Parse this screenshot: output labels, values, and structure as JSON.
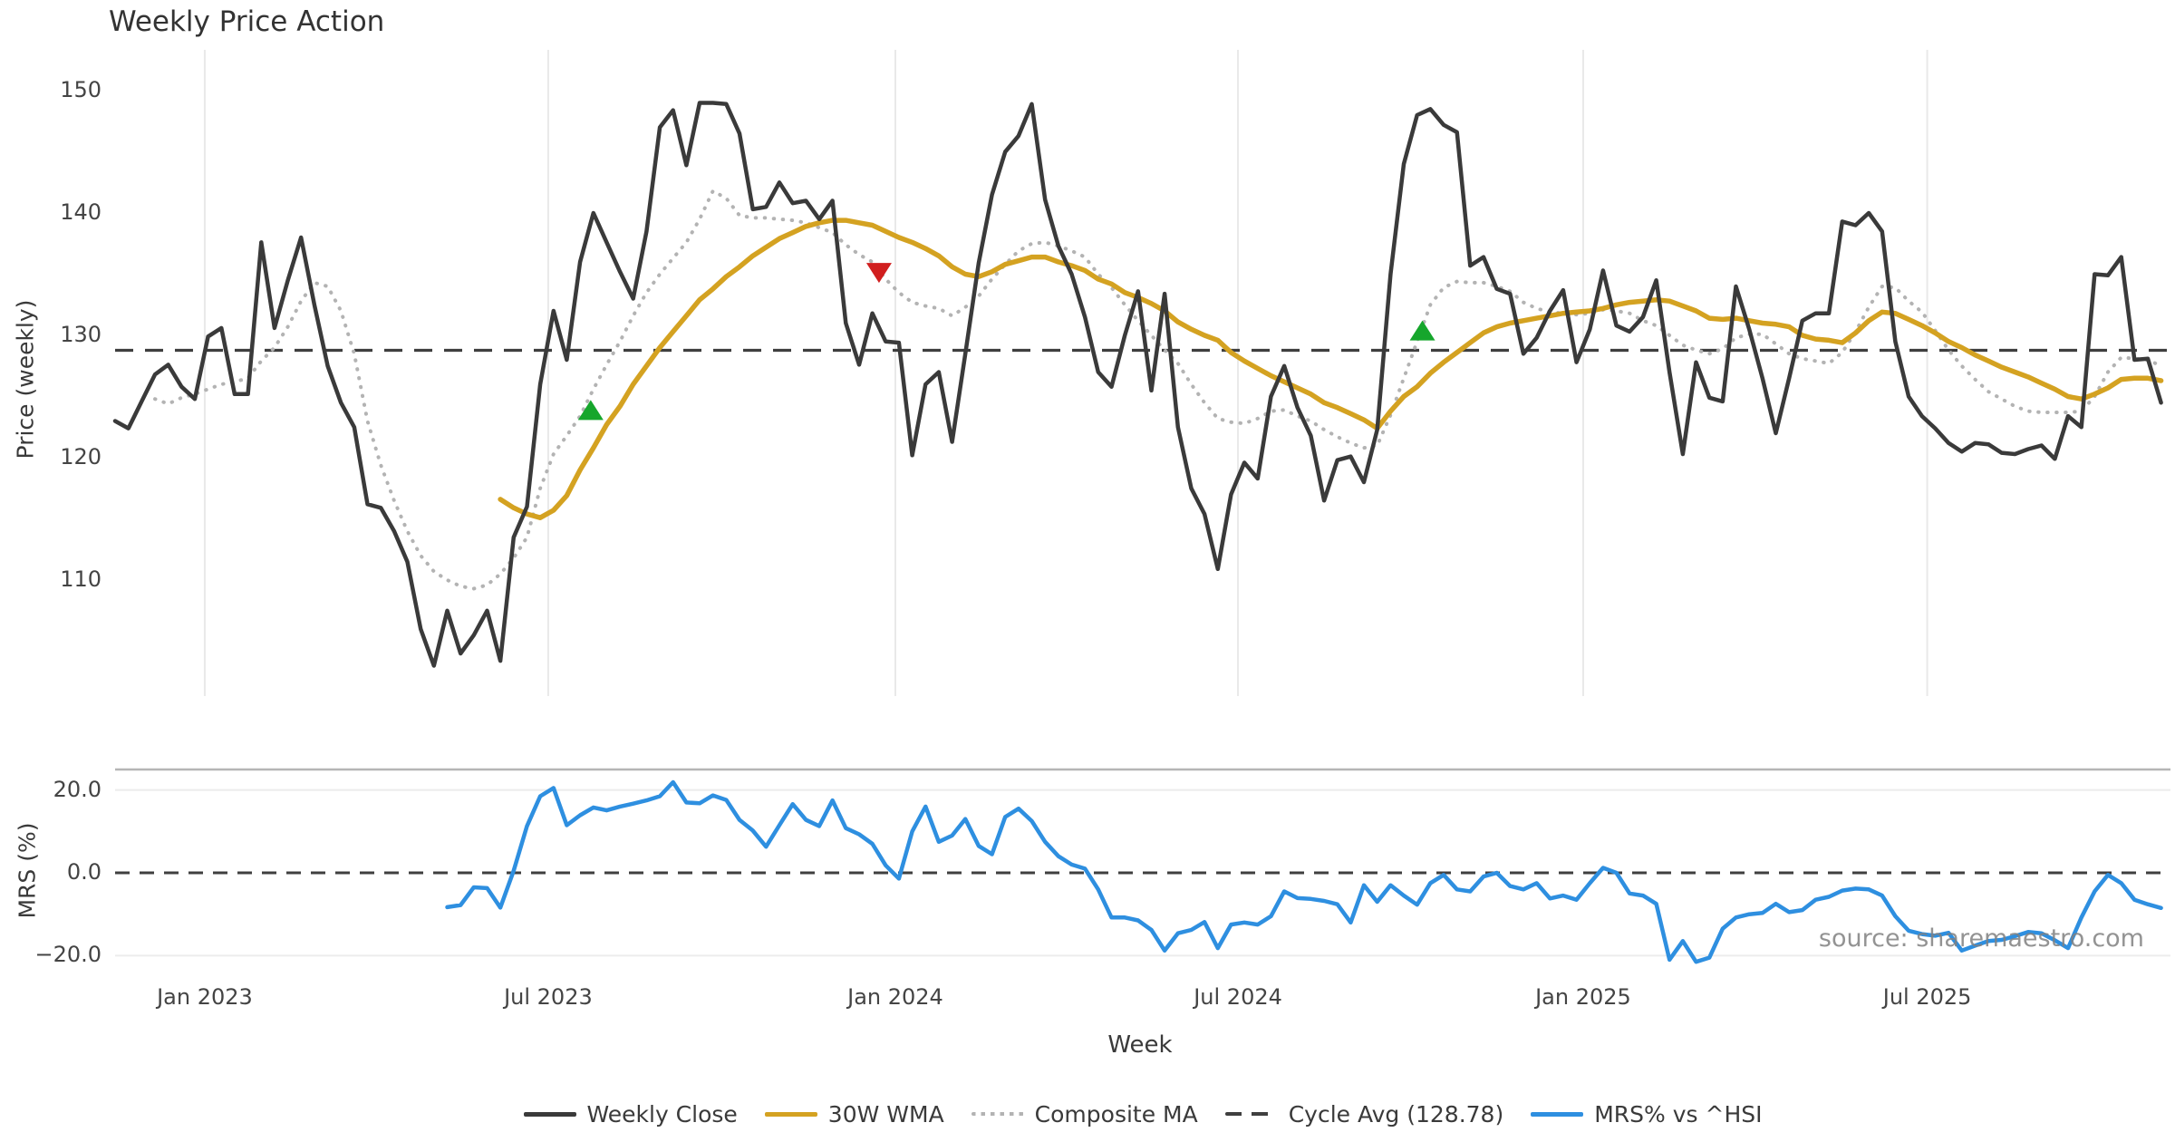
{
  "title": "Weekly Price Action",
  "source_watermark": "source: sharemaestro.com",
  "colors": {
    "weekly_close": "#3a3a3a",
    "wma30": "#d4a221",
    "composite_ma": "#b3b3b3",
    "cycle_avg": "#3f3f3f",
    "mrs": "#2e8fe0",
    "buy_marker": "#16a62c",
    "sell_marker": "#d11f1f",
    "gridline": "#e9e9e9",
    "panel_spine": "#b5b5b5",
    "mrs_gridline": "#ececec"
  },
  "axes": {
    "price": {
      "label": "Price (weekly)",
      "ticks": [
        {
          "label": "150",
          "value": 150
        },
        {
          "label": "140",
          "value": 140
        },
        {
          "label": "130",
          "value": 130
        },
        {
          "label": "120",
          "value": 120
        },
        {
          "label": "110",
          "value": 110
        }
      ]
    },
    "mrs": {
      "label": "MRS (%)",
      "ticks": [
        {
          "label": "20.0",
          "value": 20
        },
        {
          "label": "0.0",
          "value": 0
        },
        {
          "label": "−20.0",
          "value": -20
        }
      ]
    },
    "x": {
      "label": "Week",
      "ticks": [
        {
          "label": "Jan 2023",
          "week": 6.75
        },
        {
          "label": "Jul 2023",
          "week": 32.6
        },
        {
          "label": "Jan 2024",
          "week": 58.73
        },
        {
          "label": "Jul 2024",
          "week": 84.52
        },
        {
          "label": "Jan 2025",
          "week": 110.5
        },
        {
          "label": "Jul 2025",
          "week": 136.4
        }
      ]
    }
  },
  "legend": {
    "items": [
      {
        "label": "Weekly Close",
        "style": "solid",
        "color": "#3a3a3a"
      },
      {
        "label": "30W WMA",
        "style": "solid",
        "color": "#d4a221"
      },
      {
        "label": "Composite MA",
        "style": "dotted",
        "color": "#b3b3b3"
      },
      {
        "label": "Cycle Avg (128.78)",
        "style": "dashed",
        "color": "#3f3f3f"
      },
      {
        "label": "MRS% vs ^HSI",
        "style": "solid",
        "color": "#2e8fe0"
      }
    ]
  },
  "chart_data": {
    "type": "line",
    "title": "Weekly Price Action",
    "xlabel": "Week",
    "x_unit": "weekly, Nov 2022 – Nov 2025",
    "panels": [
      {
        "name": "price",
        "ylabel": "Price (weekly)",
        "ylim": [
          100.5,
          153.3
        ],
        "cycle_avg": 128.78,
        "series": [
          {
            "name": "Weekly Close",
            "start_week": 0,
            "values": [
              123.0,
              122.4,
              124.6,
              126.8,
              127.6,
              125.8,
              124.8,
              129.9,
              130.6,
              125.2,
              125.2,
              137.6,
              130.6,
              134.5,
              138.0,
              132.5,
              127.5,
              124.5,
              122.5,
              116.2,
              115.9,
              114.0,
              111.5,
              106.0,
              103.0,
              107.5,
              104.0,
              105.5,
              107.5,
              103.4,
              113.5,
              116.0,
              126.0,
              132.0,
              128.0,
              136.0,
              140.0,
              137.6,
              135.2,
              133.0,
              138.5,
              147.0,
              148.4,
              143.9,
              149.0,
              149.0,
              148.9,
              146.5,
              140.3,
              140.5,
              142.5,
              140.8,
              141.0,
              139.5,
              141.0,
              131.0,
              127.6,
              131.8,
              129.5,
              129.4,
              120.2,
              126.0,
              127.0,
              121.3,
              128.5,
              135.9,
              141.5,
              145.0,
              146.3,
              148.9,
              141.1,
              137.3,
              135.0,
              131.5,
              127.0,
              125.8,
              130.0,
              133.6,
              125.5,
              133.4,
              122.5,
              117.5,
              115.4,
              110.9,
              117.0,
              119.6,
              118.3,
              125.0,
              127.5,
              124.1,
              121.8,
              116.5,
              119.8,
              120.1,
              118.0,
              122.3,
              135.0,
              144.0,
              148.0,
              148.5,
              147.2,
              146.6,
              135.7,
              136.4,
              133.8,
              133.4,
              128.5,
              129.8,
              132.0,
              133.7,
              127.8,
              130.5,
              135.3,
              130.8,
              130.3,
              131.5,
              134.5,
              127.0,
              120.3,
              127.8,
              124.9,
              124.6,
              134.0,
              130.5,
              126.5,
              122.0,
              126.5,
              131.2,
              131.8,
              131.8,
              139.3,
              139.0,
              140.0,
              138.5,
              129.5,
              125.0,
              123.4,
              122.4,
              121.2,
              120.5,
              121.2,
              121.1,
              120.4,
              120.3,
              120.7,
              121.0,
              119.9,
              123.4,
              122.5,
              135.0,
              134.9,
              136.4,
              128.0,
              128.1,
              124.5
            ]
          },
          {
            "name": "30W WMA",
            "start_week": 29,
            "values": [
              116.6,
              115.9,
              115.4,
              115.1,
              115.7,
              116.9,
              119.0,
              120.8,
              122.7,
              124.2,
              126.0,
              127.5,
              129.0,
              130.3,
              131.6,
              132.9,
              133.8,
              134.8,
              135.6,
              136.5,
              137.2,
              137.9,
              138.4,
              138.9,
              139.2,
              139.4,
              139.4,
              139.2,
              139.0,
              138.5,
              138.0,
              137.6,
              137.1,
              136.5,
              135.6,
              135.0,
              134.8,
              135.2,
              135.8,
              136.1,
              136.4,
              136.4,
              136.0,
              135.7,
              135.3,
              134.6,
              134.2,
              133.5,
              133.1,
              132.6,
              132.0,
              131.1,
              130.5,
              130.0,
              129.6,
              128.6,
              127.9,
              127.3,
              126.7,
              126.2,
              125.7,
              125.2,
              124.5,
              124.1,
              123.6,
              123.1,
              122.4,
              123.8,
              125.0,
              125.8,
              126.9,
              127.8,
              128.6,
              129.4,
              130.2,
              130.7,
              131.0,
              131.2,
              131.4,
              131.6,
              131.8,
              131.9,
              132.0,
              132.2,
              132.5,
              132.7,
              132.8,
              132.9,
              132.8,
              132.4,
              132.0,
              131.4,
              131.3,
              131.4,
              131.2,
              131.0,
              130.9,
              130.7,
              130.0,
              129.7,
              129.6,
              129.4,
              130.2,
              131.2,
              131.9,
              131.8,
              131.3,
              130.8,
              130.2,
              129.5,
              129.0,
              128.4,
              127.9,
              127.4,
              127.0,
              126.6,
              126.1,
              125.6,
              125.0,
              124.8,
              125.2,
              125.7,
              126.4,
              126.5,
              126.5,
              126.3
            ]
          },
          {
            "name": "Composite MA",
            "start_week": 3,
            "values": [
              124.8,
              124.4,
              124.9,
              125.2,
              125.6,
              126.0,
              126.2,
              126.5,
              127.9,
              129.0,
              130.7,
              132.8,
              134.3,
              134.0,
              132.0,
              128.5,
              123.0,
              119.4,
              116.5,
              114.0,
              112.0,
              110.7,
              110.0,
              109.5,
              109.3,
              109.6,
              110.5,
              111.8,
              113.5,
              117.5,
              120.3,
              121.8,
              123.4,
              125.6,
              127.6,
              129.5,
              131.6,
              133.5,
              135.0,
              136.3,
              137.6,
              139.5,
              141.8,
              141.2,
              139.8,
              139.6,
              139.6,
              139.5,
              139.4,
              139.2,
              138.8,
              138.4,
              137.4,
              136.6,
              136.0,
              134.6,
              133.5,
              132.7,
              132.4,
              132.2,
              131.6,
              132.3,
              133.2,
              134.6,
              135.8,
              136.9,
              137.5,
              137.6,
              137.3,
              136.9,
              136.4,
              135.0,
              133.9,
              132.5,
              131.2,
              130.0,
              128.8,
              127.7,
              126.0,
              124.5,
              123.2,
              122.9,
              122.8,
              123.2,
              123.8,
              123.9,
              123.4,
              123.0,
              122.3,
              121.7,
              121.2,
              120.8,
              121.0,
              123.5,
              126.5,
              129.5,
              132.5,
              133.9,
              134.4,
              134.3,
              134.3,
              134.0,
              133.6,
              132.7,
              132.2,
              131.9,
              131.8,
              131.7,
              131.8,
              132.1,
              132.0,
              131.8,
              131.2,
              130.8,
              130.0,
              129.2,
              128.8,
              128.5,
              128.9,
              129.8,
              130.1,
              130.1,
              129.3,
              128.5,
              128.1,
              127.9,
              127.7,
              128.6,
              130.3,
              132.3,
              134.0,
              133.9,
              132.8,
              131.9,
              130.4,
              128.8,
              127.5,
              126.4,
              125.4,
              124.8,
              124.2,
              123.8,
              123.7,
              123.7,
              123.7,
              123.8,
              125.0,
              127.0,
              128.2,
              128.1,
              128.0,
              127.5
            ]
          }
        ],
        "markers": [
          {
            "shape": "up",
            "week": 35.8,
            "price": 123.9,
            "meaning": "buy-signal"
          },
          {
            "shape": "down",
            "week": 57.5,
            "price": 135.1,
            "meaning": "sell-signal"
          },
          {
            "shape": "up",
            "week": 98.4,
            "price": 130.4,
            "meaning": "buy-signal"
          }
        ]
      },
      {
        "name": "mrs",
        "ylabel": "MRS (%)",
        "ylim": [
          -25,
          25
        ],
        "zero_line": 0,
        "series": [
          {
            "name": "MRS% vs ^HSI",
            "start_week": 25,
            "values": [
              -8.3,
              -7.8,
              -3.5,
              -3.7,
              -8.4,
              0.5,
              11.3,
              18.5,
              20.5,
              11.5,
              13.9,
              15.8,
              15.1,
              16.0,
              16.7,
              17.5,
              18.5,
              21.9,
              17.0,
              16.8,
              18.7,
              17.6,
              12.8,
              10.2,
              6.3,
              11.5,
              16.6,
              12.8,
              11.3,
              17.5,
              10.8,
              9.3,
              7.0,
              1.8,
              -1.4,
              10.0,
              16.0,
              7.5,
              9.0,
              13.0,
              6.5,
              4.5,
              13.5,
              15.5,
              12.5,
              7.5,
              4.0,
              2.0,
              1.0,
              -4.0,
              -10.8,
              -10.8,
              -11.5,
              -13.8,
              -18.8,
              -14.6,
              -13.8,
              -11.9,
              -18.2,
              -12.5,
              -12.0,
              -12.5,
              -10.5,
              -4.5,
              -6.1,
              -6.3,
              -6.8,
              -7.6,
              -12.0,
              -3.0,
              -7.0,
              -3.0,
              -5.5,
              -7.7,
              -2.5,
              -0.5,
              -4.0,
              -4.5,
              -0.9,
              0.0,
              -3.2,
              -4.0,
              -2.5,
              -6.2,
              -5.5,
              -6.5,
              -2.5,
              1.2,
              0.0,
              -5.0,
              -5.5,
              -7.5,
              -21.0,
              -16.5,
              -21.5,
              -20.5,
              -13.5,
              -10.8,
              -10.0,
              -9.7,
              -7.5,
              -9.5,
              -9.0,
              -6.5,
              -5.8,
              -4.3,
              -3.8,
              -4.0,
              -5.5,
              -10.5,
              -14.0,
              -14.8,
              -15.2,
              -14.5,
              -18.8,
              -17.6,
              -16.5,
              -16.2,
              -15.3,
              -14.3,
              -14.6,
              -16.3,
              -18.2,
              -10.8,
              -4.5,
              -0.5,
              -2.5,
              -6.5,
              -7.6,
              -8.5
            ]
          }
        ]
      }
    ],
    "legend_position": "bottom-center",
    "grid": "vertical-light-top-panel; horizontal ±20 bottom panel"
  }
}
